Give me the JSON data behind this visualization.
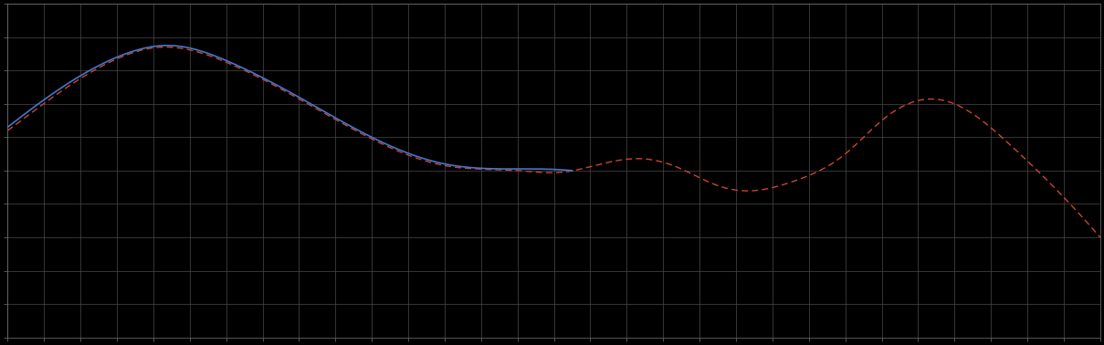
{
  "background_color": "#000000",
  "plot_background_color": "#000000",
  "grid_color": "#4a4a4a",
  "line1_color": "#4477cc",
  "line2_color": "#cc4433",
  "figsize": [
    12.09,
    3.78
  ],
  "dpi": 100,
  "n_gridlines_x": 30,
  "n_gridlines_y": 10,
  "spine_color": "#777777",
  "xlim": [
    0,
    30
  ],
  "ylim": [
    0,
    10
  ]
}
